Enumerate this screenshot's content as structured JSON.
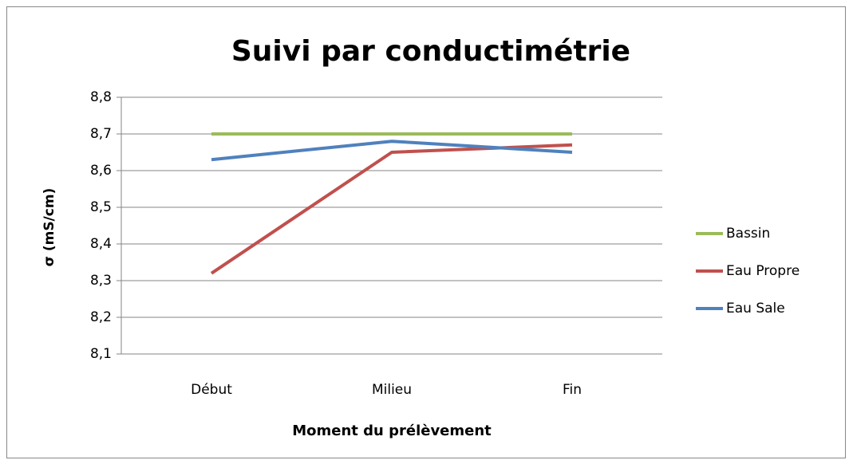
{
  "chart_data": {
    "type": "line",
    "title": "Suivi par conductimétrie",
    "y_label": "σ (mS/cm)",
    "x_label": "Moment du prélèvement",
    "categories": [
      "Début",
      "Milieu",
      "Fin"
    ],
    "series": [
      {
        "name": "Bassin",
        "color": "#9bbb59",
        "values": [
          8.7,
          8.7,
          8.7
        ]
      },
      {
        "name": "Eau Propre",
        "color": "#c0504d",
        "values": [
          8.32,
          8.65,
          8.67
        ]
      },
      {
        "name": "Eau Sale",
        "color": "#4f81bd",
        "values": [
          8.63,
          8.68,
          8.65
        ]
      }
    ],
    "ylim": [
      8.1,
      8.8
    ],
    "yticks": [
      {
        "value": 8.1,
        "label": "8,1"
      },
      {
        "value": 8.2,
        "label": "8,2"
      },
      {
        "value": 8.3,
        "label": "8,3"
      },
      {
        "value": 8.4,
        "label": "8,4"
      },
      {
        "value": 8.5,
        "label": "8,5"
      },
      {
        "value": 8.6,
        "label": "8,6"
      },
      {
        "value": 8.7,
        "label": "8,7"
      },
      {
        "value": 8.8,
        "label": "8,8"
      }
    ],
    "grid": true,
    "legend": "right"
  }
}
